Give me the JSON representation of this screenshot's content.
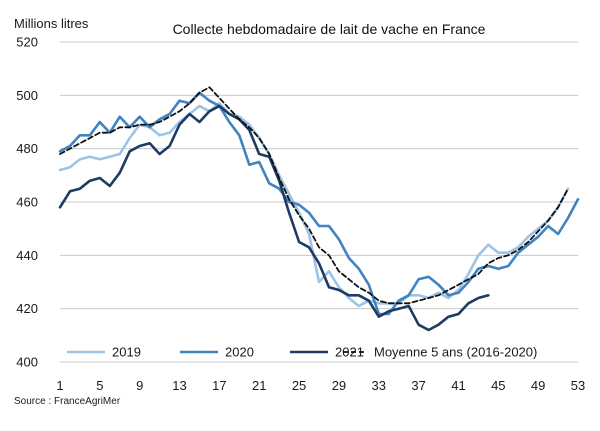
{
  "chart_data": {
    "type": "line",
    "title": "Collecte hebdomadaire de lait de vache en France",
    "ylabel": "Millions litres",
    "xlabel": "",
    "source": "Source : FranceAgriMer",
    "ylim": [
      400,
      520
    ],
    "yticks": [
      400,
      420,
      440,
      460,
      480,
      500,
      520
    ],
    "xlim": [
      1,
      53
    ],
    "xticks": [
      1,
      5,
      9,
      13,
      17,
      21,
      25,
      29,
      33,
      37,
      41,
      45,
      49,
      53
    ],
    "grid": "horizontal",
    "legend_position": "bottom",
    "series": [
      {
        "name": "2019",
        "color": "#9dc3e6",
        "dash": "solid",
        "x": [
          1,
          2,
          3,
          4,
          5,
          6,
          7,
          8,
          9,
          10,
          11,
          12,
          13,
          14,
          15,
          16,
          17,
          18,
          19,
          20,
          21,
          22,
          23,
          24,
          25,
          26,
          27,
          28,
          29,
          30,
          31,
          32,
          33,
          34,
          35,
          36,
          37,
          38,
          39,
          40,
          41,
          42,
          43,
          44,
          45,
          46,
          47,
          48,
          49,
          50,
          51,
          52
        ],
        "values": [
          472,
          473,
          476,
          477,
          476,
          477,
          478,
          484,
          489,
          488,
          485,
          486,
          490,
          493,
          496,
          494,
          497,
          493,
          492,
          489,
          484,
          478,
          470,
          463,
          456,
          448,
          430,
          434,
          428,
          424,
          421,
          423,
          422,
          422,
          422,
          425,
          425,
          424,
          426,
          424,
          427,
          433,
          440,
          444,
          441,
          441,
          443,
          447,
          450,
          453,
          458,
          465
        ]
      },
      {
        "name": "2020",
        "color": "#3f84c0",
        "dash": "solid",
        "x": [
          1,
          2,
          3,
          4,
          5,
          6,
          7,
          8,
          9,
          10,
          11,
          12,
          13,
          14,
          15,
          16,
          17,
          18,
          19,
          20,
          21,
          22,
          23,
          24,
          25,
          26,
          27,
          28,
          29,
          30,
          31,
          32,
          33,
          34,
          35,
          36,
          37,
          38,
          39,
          40,
          41,
          42,
          43,
          44,
          45,
          46,
          47,
          48,
          49,
          50,
          51,
          52,
          53
        ],
        "values": [
          479,
          481,
          485,
          485,
          490,
          486,
          492,
          488,
          492,
          488,
          491,
          493,
          498,
          497,
          501,
          498,
          496,
          490,
          485,
          474,
          475,
          467,
          465,
          460,
          459,
          456,
          451,
          451,
          446,
          439,
          435,
          429,
          418,
          418,
          423,
          425,
          431,
          432,
          429,
          425,
          426,
          430,
          435,
          436,
          435,
          436,
          441,
          444,
          447,
          451,
          448,
          454,
          461
        ]
      },
      {
        "name": "2021",
        "color": "#1f3a63",
        "dash": "solid",
        "x": [
          1,
          2,
          3,
          4,
          5,
          6,
          7,
          8,
          9,
          10,
          11,
          12,
          13,
          14,
          15,
          16,
          17,
          18,
          19,
          20,
          21,
          22,
          23,
          24,
          25,
          26,
          27,
          28,
          29,
          30,
          31,
          32,
          33,
          34,
          35,
          36,
          37,
          38,
          39,
          40,
          41,
          42,
          43,
          44
        ],
        "values": [
          458,
          464,
          465,
          468,
          469,
          466,
          471,
          479,
          481,
          482,
          478,
          481,
          489,
          493,
          490,
          494,
          496,
          493,
          491,
          487,
          478,
          477,
          468,
          456,
          445,
          443,
          437,
          428,
          427,
          425,
          425,
          423,
          417,
          419,
          420,
          421,
          414,
          412,
          414,
          417,
          418,
          422,
          424,
          425
        ]
      },
      {
        "name": "Moyenne 5 ans (2016-2020)",
        "color": "#111111",
        "dash": "dashed",
        "x": [
          1,
          2,
          3,
          4,
          5,
          6,
          7,
          8,
          9,
          10,
          11,
          12,
          13,
          14,
          15,
          16,
          17,
          18,
          19,
          20,
          21,
          22,
          23,
          24,
          25,
          26,
          27,
          28,
          29,
          30,
          31,
          32,
          33,
          34,
          35,
          36,
          37,
          38,
          39,
          40,
          41,
          42,
          43,
          44,
          45,
          46,
          47,
          48,
          49,
          50,
          51,
          52
        ],
        "values": [
          478,
          480,
          482,
          484,
          486,
          486,
          488,
          488,
          489,
          489,
          490,
          492,
          494,
          497,
          501,
          503,
          499,
          495,
          491,
          488,
          484,
          478,
          469,
          461,
          455,
          450,
          443,
          440,
          434,
          431,
          428,
          426,
          423,
          422,
          422,
          422,
          423,
          424,
          425,
          427,
          429,
          431,
          433,
          437,
          439,
          440,
          442,
          445,
          449,
          453,
          458,
          465
        ]
      }
    ]
  }
}
